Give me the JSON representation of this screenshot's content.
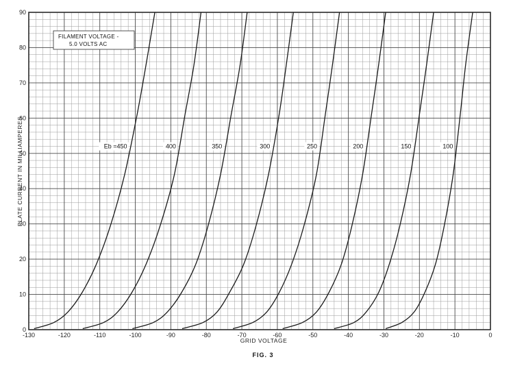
{
  "chart_data": {
    "type": "line",
    "title": "",
    "xlabel": "GRID VOLTAGE",
    "ylabel": "PLATE CURRENT IN MILLIAMPERES",
    "xlim": [
      -130,
      0
    ],
    "ylim": [
      0,
      90
    ],
    "x_ticks": [
      -130,
      -120,
      -110,
      -100,
      -90,
      -80,
      -70,
      -60,
      -50,
      -40,
      -30,
      -20,
      -10,
      0
    ],
    "y_ticks": [
      0,
      10,
      20,
      30,
      40,
      50,
      60,
      70,
      80,
      90
    ],
    "x_tick_labels": [
      "-130",
      "-120",
      "-110",
      "-100",
      "-90",
      "-80",
      "-70",
      "-60",
      "-50",
      "-40",
      "-30",
      "-20",
      "-10",
      "0"
    ],
    "y_tick_labels": [
      "0",
      "10",
      "20",
      "30",
      "40",
      "50",
      "60",
      "70",
      "80",
      "90"
    ],
    "grid": true,
    "annotation": {
      "line1": "FILAMENT VOLTAGE -",
      "line2": "5.0 VOLTS AC"
    },
    "caption": "FIG. 3",
    "series": [
      {
        "name": "Eb = 450",
        "label": "Eb =450",
        "points": [
          [
            -128.5,
            0.3
          ],
          [
            -123,
            2
          ],
          [
            -119,
            5
          ],
          [
            -115,
            10.5
          ],
          [
            -111,
            18.5
          ],
          [
            -107,
            29.5
          ],
          [
            -103,
            44
          ],
          [
            -99.5,
            61
          ],
          [
            -97,
            75
          ],
          [
            -94.5,
            90
          ]
        ]
      },
      {
        "name": "400",
        "label": "400",
        "points": [
          [
            -114.8,
            0.3
          ],
          [
            -109,
            2
          ],
          [
            -105,
            5
          ],
          [
            -101,
            10.5
          ],
          [
            -97,
            18.5
          ],
          [
            -93,
            29.5
          ],
          [
            -89,
            44
          ],
          [
            -86,
            61
          ],
          [
            -83.5,
            75
          ],
          [
            -81.5,
            90
          ]
        ]
      },
      {
        "name": "350",
        "label": "350",
        "points": [
          [
            -100.8,
            0.3
          ],
          [
            -95,
            2
          ],
          [
            -91,
            5
          ],
          [
            -87,
            10.5
          ],
          [
            -83,
            18.5
          ],
          [
            -79.5,
            29.5
          ],
          [
            -76,
            44
          ],
          [
            -73,
            61
          ],
          [
            -70.5,
            75
          ],
          [
            -68.5,
            90
          ]
        ]
      },
      {
        "name": "300",
        "label": "300",
        "points": [
          [
            -86.8,
            0.3
          ],
          [
            -81,
            2
          ],
          [
            -77,
            5
          ],
          [
            -73.5,
            10.5
          ],
          [
            -69.5,
            18.5
          ],
          [
            -66,
            29.5
          ],
          [
            -62.5,
            44
          ],
          [
            -59.5,
            61
          ],
          [
            -57.5,
            75
          ],
          [
            -55.5,
            90
          ]
        ]
      },
      {
        "name": "250",
        "label": "250",
        "points": [
          [
            -72.5,
            0.3
          ],
          [
            -67,
            2
          ],
          [
            -63,
            5
          ],
          [
            -59.5,
            10.5
          ],
          [
            -56,
            18.5
          ],
          [
            -52.5,
            29.5
          ],
          [
            -49,
            44
          ],
          [
            -46.5,
            61
          ],
          [
            -44.5,
            75
          ],
          [
            -42.5,
            90
          ]
        ]
      },
      {
        "name": "200",
        "label": "200",
        "points": [
          [
            -58.5,
            0.3
          ],
          [
            -53,
            2
          ],
          [
            -49,
            5
          ],
          [
            -45.5,
            10.5
          ],
          [
            -42,
            18.5
          ],
          [
            -39,
            29.5
          ],
          [
            -36,
            44
          ],
          [
            -33.5,
            61
          ],
          [
            -31.5,
            75
          ],
          [
            -29.5,
            90
          ]
        ]
      },
      {
        "name": "150",
        "label": "150",
        "points": [
          [
            -44,
            0.3
          ],
          [
            -38.5,
            2
          ],
          [
            -35,
            5
          ],
          [
            -31.5,
            10.5
          ],
          [
            -28.5,
            18.5
          ],
          [
            -25.5,
            29.5
          ],
          [
            -22.5,
            44
          ],
          [
            -20,
            61
          ],
          [
            -18,
            75
          ],
          [
            -16,
            90
          ]
        ]
      },
      {
        "name": "100",
        "label": "100",
        "points": [
          [
            -29.5,
            0.3
          ],
          [
            -25,
            2
          ],
          [
            -21.5,
            5
          ],
          [
            -18.5,
            10.5
          ],
          [
            -15.5,
            18.5
          ],
          [
            -13,
            29.5
          ],
          [
            -10.5,
            44
          ],
          [
            -8.5,
            61
          ],
          [
            -7,
            75
          ],
          [
            -5,
            90
          ]
        ]
      }
    ],
    "label_y": 52
  },
  "colors": {
    "grid_major": "#4a4a4a",
    "grid_minor": "#9a9a9a",
    "curve": "#1a1a1a",
    "text": "#222222"
  }
}
